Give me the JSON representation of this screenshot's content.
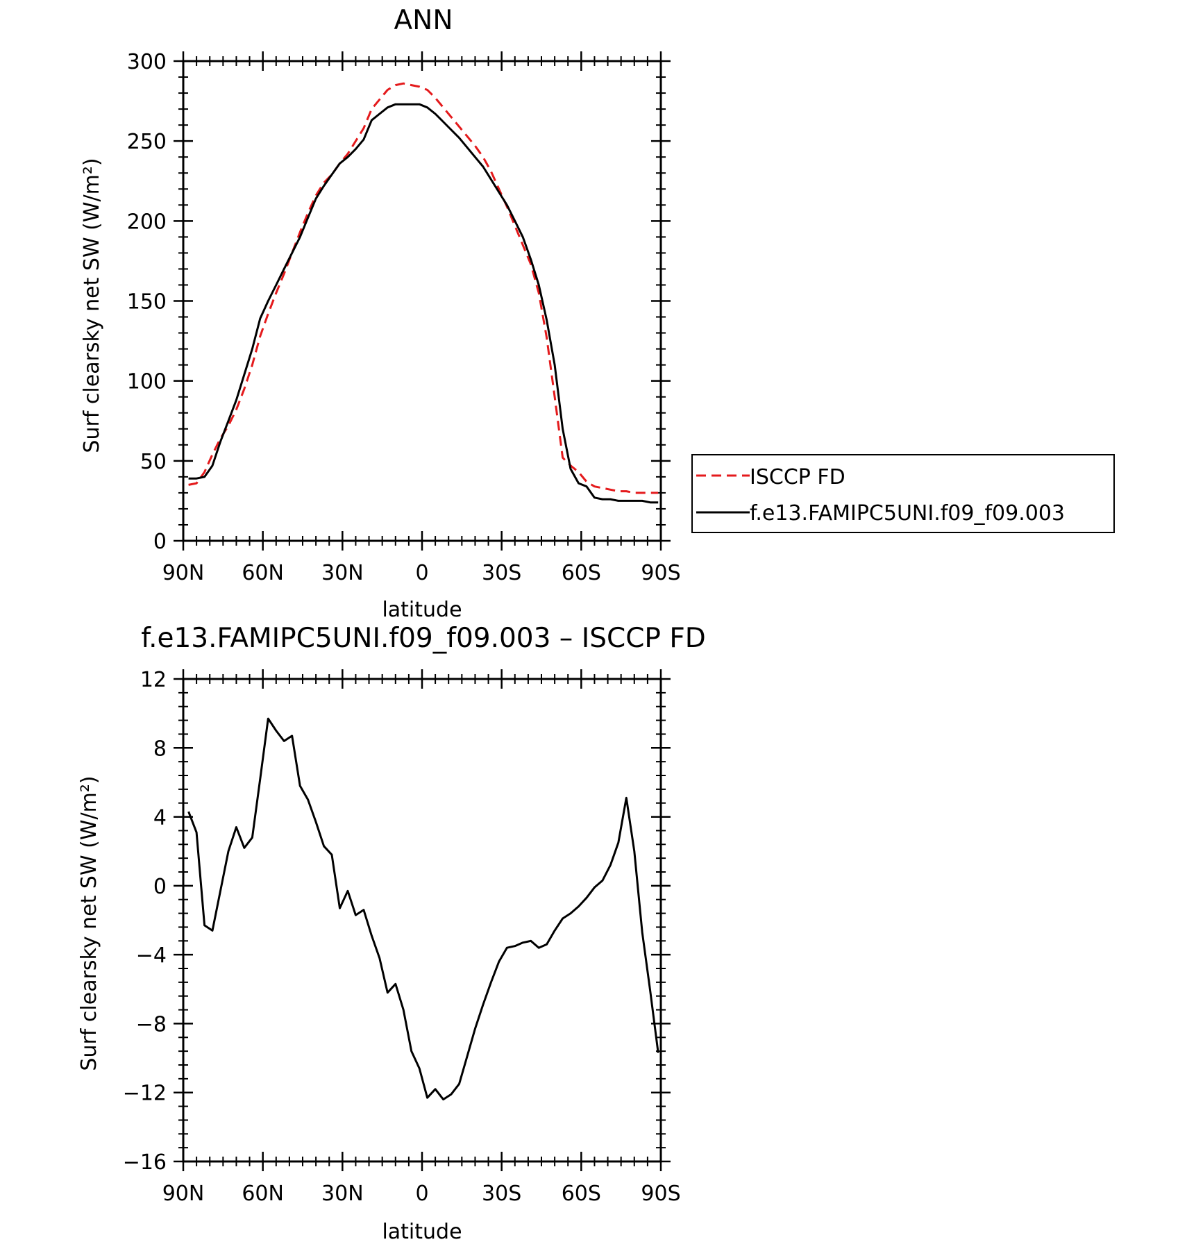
{
  "chart_data": [
    {
      "type": "line",
      "title": "ANN",
      "xlabel": "latitude",
      "ylabel": "Surf clearsky net SW (W/m²)",
      "xlim": [
        90,
        -90
      ],
      "ylim": [
        0,
        300
      ],
      "xticks": [
        90,
        60,
        30,
        0,
        -30,
        -60,
        -90
      ],
      "xtick_labels": [
        "90N",
        "60N",
        "30N",
        "0",
        "30S",
        "60S",
        "90S"
      ],
      "yticks": [
        0,
        50,
        100,
        150,
        200,
        250,
        300
      ],
      "ytick_labels": [
        "0",
        "50",
        "100",
        "150",
        "200",
        "250",
        "300"
      ],
      "legend_position": "right",
      "series": [
        {
          "name": "ISCCP FD",
          "color": "#e41a1c",
          "style": "dashed",
          "x": [
            88,
            85,
            82,
            79,
            76,
            73,
            70,
            67,
            64,
            61,
            58,
            55,
            52,
            49,
            46,
            43,
            40,
            37,
            34,
            31,
            28,
            25,
            22,
            19,
            16,
            13,
            10,
            7,
            4,
            1,
            -2,
            -5,
            -8,
            -11,
            -14,
            -17,
            -20,
            -23,
            -26,
            -29,
            -32,
            -35,
            -38,
            -41,
            -44,
            -47,
            -50,
            -53,
            -56,
            -59,
            -62,
            -65,
            -68,
            -71,
            -74,
            -77,
            -80,
            -83,
            -86,
            -89
          ],
          "y": [
            35,
            36,
            43,
            54,
            64,
            72,
            82,
            95,
            110,
            128,
            142,
            155,
            167,
            180,
            193,
            205,
            216,
            224,
            229,
            236,
            242,
            250,
            258,
            270,
            276,
            282,
            285,
            286,
            285,
            284,
            282,
            277,
            271,
            265,
            259,
            253,
            247,
            240,
            231,
            220,
            209,
            197,
            185,
            173,
            155,
            127,
            90,
            52,
            47,
            43,
            37,
            34,
            33,
            32,
            31,
            31,
            30,
            30,
            30,
            30
          ]
        },
        {
          "name": "f.e13.FAMIPC5UNI.f09_f09.003",
          "color": "#000000",
          "style": "solid",
          "x": [
            88,
            85,
            82,
            79,
            76,
            73,
            70,
            67,
            64,
            61,
            58,
            55,
            52,
            49,
            46,
            43,
            40,
            37,
            34,
            31,
            28,
            25,
            22,
            19,
            16,
            13,
            10,
            7,
            4,
            1,
            -2,
            -5,
            -8,
            -11,
            -14,
            -17,
            -20,
            -23,
            -26,
            -29,
            -32,
            -35,
            -38,
            -41,
            -44,
            -47,
            -50,
            -53,
            -56,
            -59,
            -62,
            -65,
            -68,
            -71,
            -74,
            -77,
            -80,
            -83,
            -86,
            -89
          ],
          "y": [
            39,
            39,
            40,
            47,
            62,
            75,
            88,
            104,
            120,
            139,
            150,
            160,
            170,
            180,
            190,
            202,
            214,
            222,
            229,
            236,
            240,
            245,
            251,
            263,
            267,
            271,
            273,
            273,
            273,
            273,
            271,
            267,
            262,
            257,
            252,
            246,
            240,
            234,
            226,
            218,
            210,
            200,
            190,
            176,
            160,
            138,
            110,
            70,
            45,
            36,
            34,
            27,
            26,
            26,
            25,
            25,
            25,
            25,
            24,
            24
          ]
        }
      ]
    },
    {
      "type": "line",
      "title": "f.e13.FAMIPC5UNI.f09_f09.003 – ISCCP FD",
      "xlabel": "latitude",
      "ylabel": "Surf clearsky net SW (W/m²)",
      "xlim": [
        90,
        -90
      ],
      "ylim": [
        -16,
        12
      ],
      "xticks": [
        90,
        60,
        30,
        0,
        -30,
        -60,
        -90
      ],
      "xtick_labels": [
        "90N",
        "60N",
        "30N",
        "0",
        "30S",
        "60S",
        "90S"
      ],
      "yticks": [
        -16,
        -12,
        -8,
        -4,
        0,
        4,
        8,
        12
      ],
      "ytick_labels": [
        "−16",
        "−12",
        "−8",
        "−4",
        "0",
        "4",
        "8",
        "12"
      ],
      "series": [
        {
          "color": "#000000",
          "style": "solid",
          "x": [
            88,
            85,
            82,
            79,
            76,
            73,
            70,
            67,
            64,
            61,
            58,
            55,
            52,
            49,
            46,
            43,
            40,
            37,
            34,
            31,
            28,
            25,
            22,
            19,
            16,
            13,
            10,
            7,
            4,
            1,
            -2,
            -5,
            -8,
            -11,
            -14,
            -17,
            -20,
            -23,
            -26,
            -29,
            -32,
            -35,
            -38,
            -41,
            -44,
            -47,
            -50,
            -53,
            -56,
            -59,
            -62,
            -65,
            -68,
            -71,
            -74,
            -77,
            -80,
            -83,
            -86,
            -89
          ],
          "y": [
            4.3,
            3.1,
            -2.3,
            -2.6,
            -0.3,
            2.0,
            3.4,
            2.2,
            2.8,
            6.2,
            9.7,
            9.0,
            8.4,
            8.7,
            5.8,
            5.0,
            3.7,
            2.3,
            1.8,
            -1.3,
            -0.3,
            -1.7,
            -1.4,
            -2.9,
            -4.2,
            -6.2,
            -5.7,
            -7.2,
            -9.6,
            -10.6,
            -12.3,
            -11.8,
            -12.4,
            -12.1,
            -11.5,
            -9.9,
            -8.3,
            -6.9,
            -5.6,
            -4.4,
            -3.6,
            -3.5,
            -3.3,
            -3.2,
            -3.6,
            -3.4,
            -2.6,
            -1.9,
            -1.6,
            -1.2,
            -0.7,
            -0.1,
            0.3,
            1.2,
            2.5,
            5.1,
            2.0,
            -2.7,
            -6.1,
            -9.7
          ]
        }
      ]
    }
  ]
}
